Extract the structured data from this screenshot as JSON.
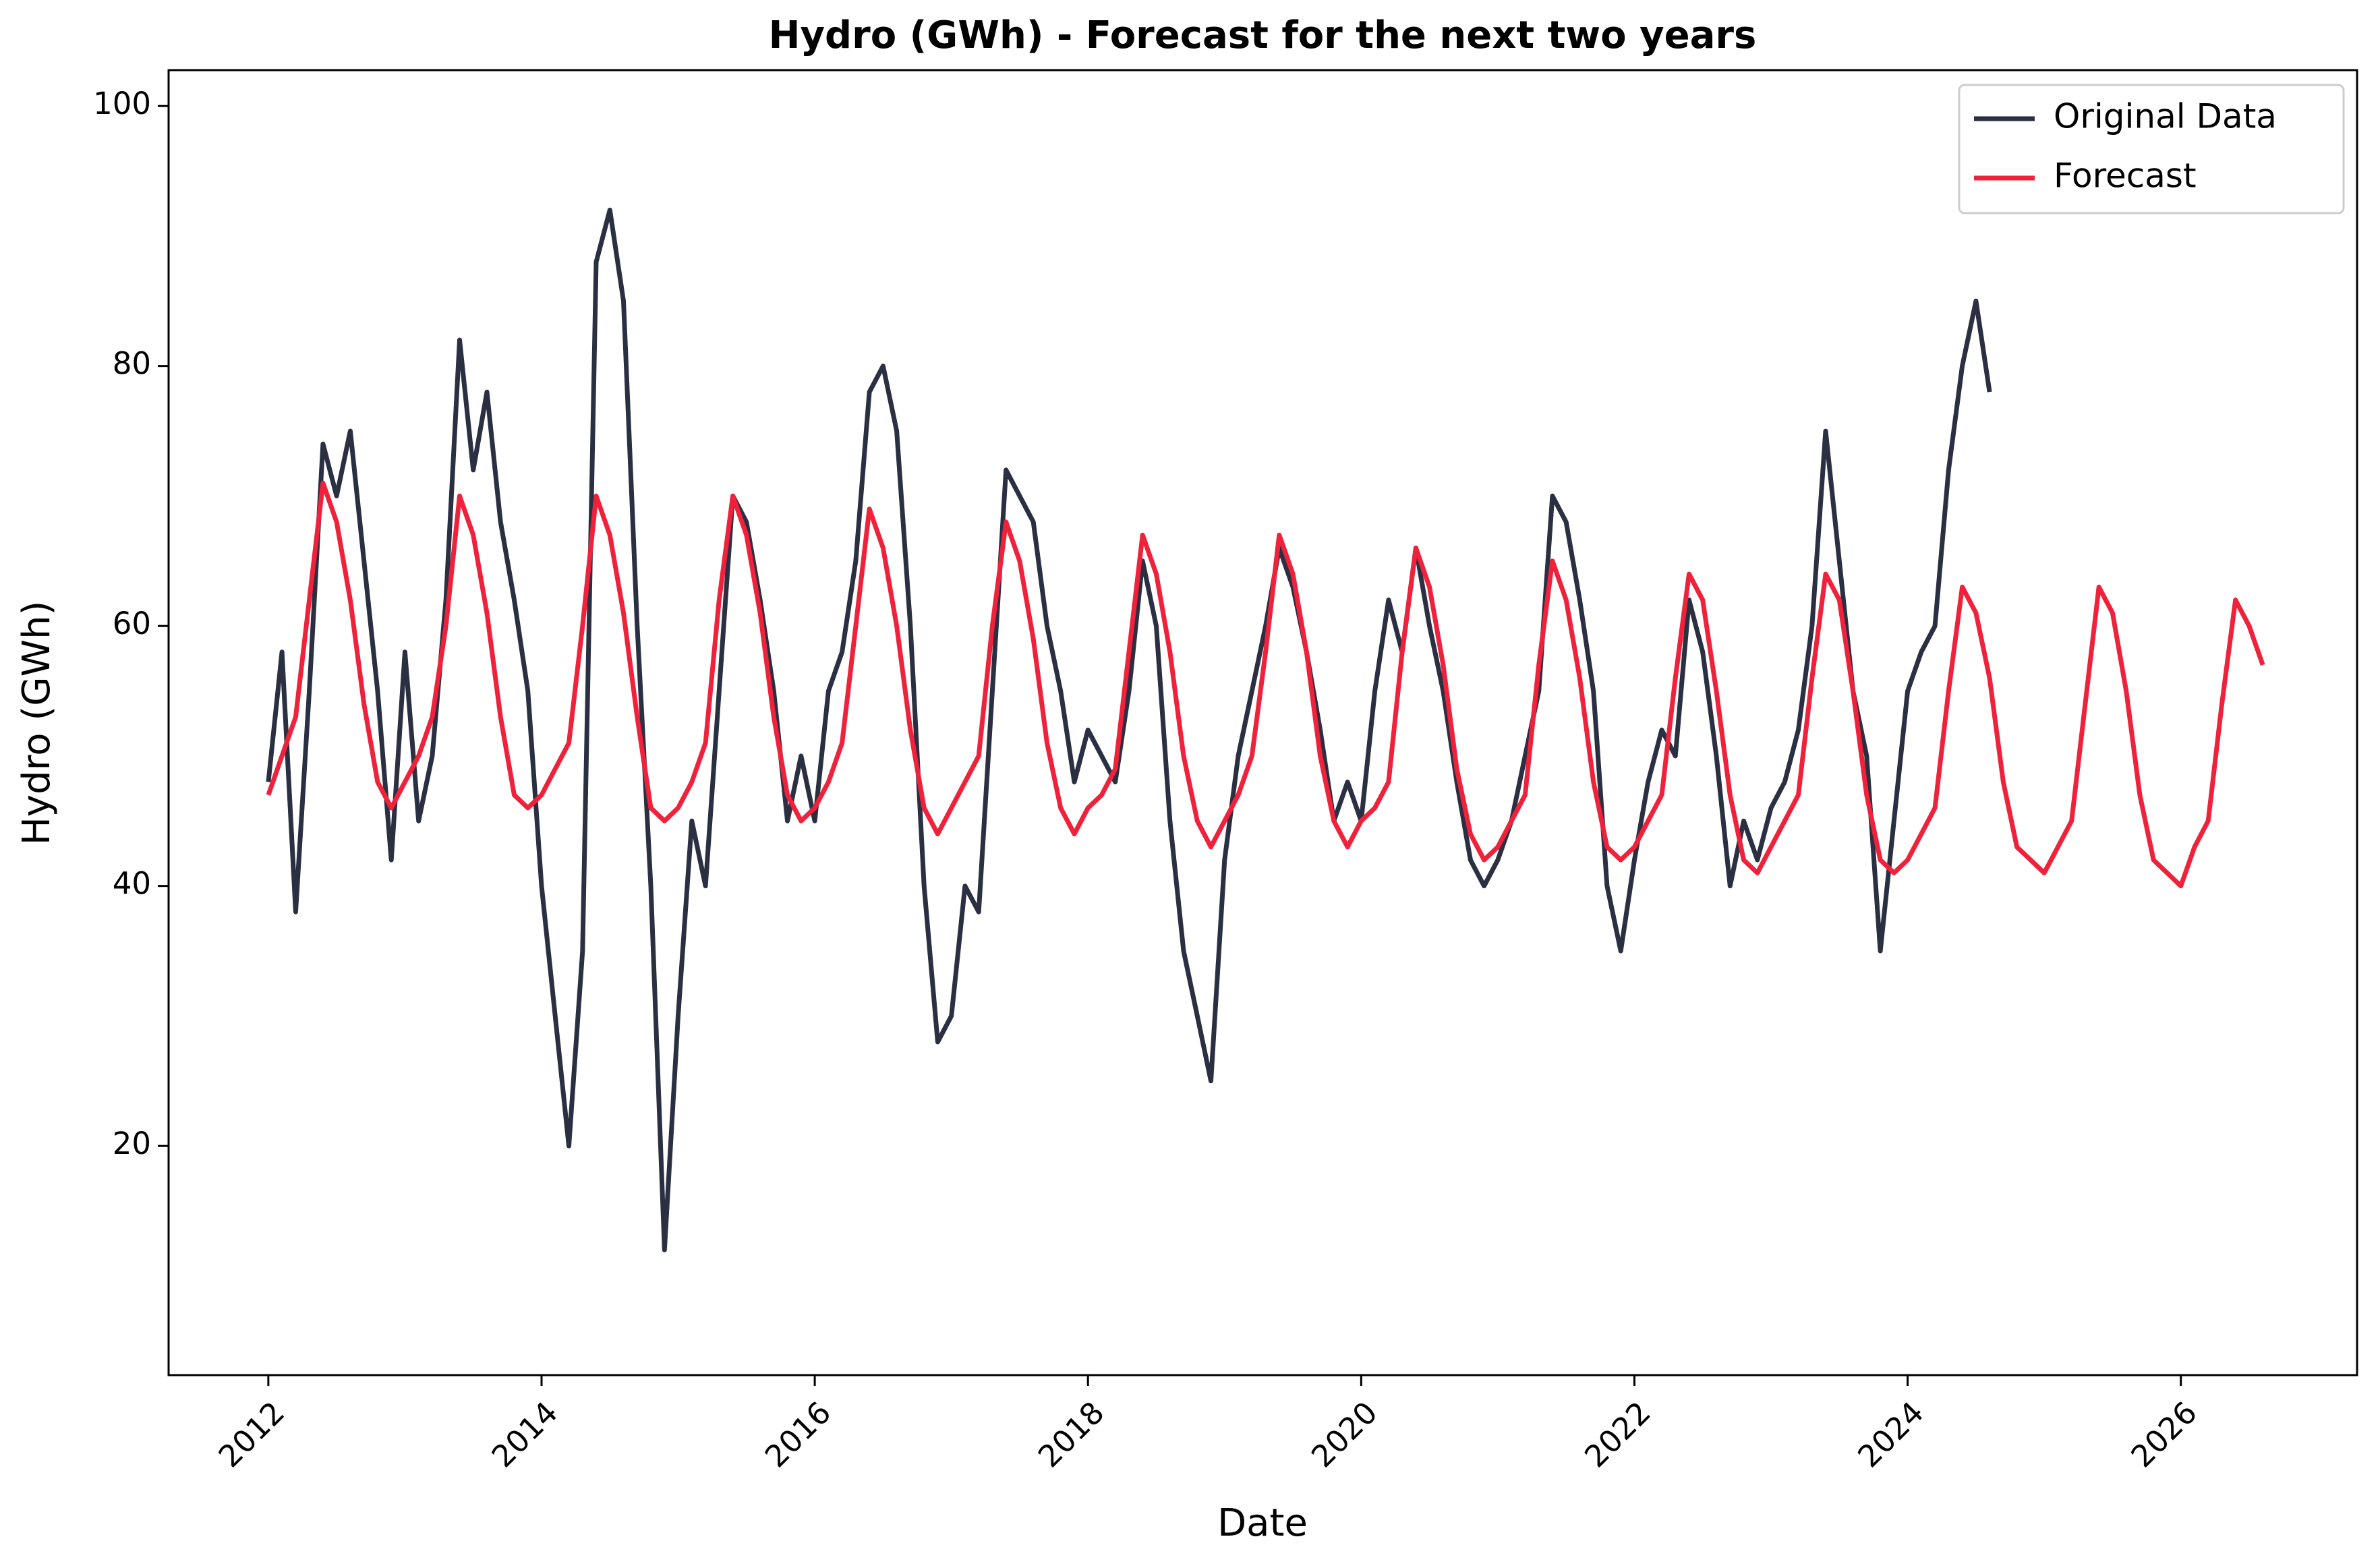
{
  "chart_data": {
    "type": "line",
    "title": "Hydro (GWh) - Forecast for the next two years",
    "x_label": "Date",
    "y_label": "Hydro (GWh)",
    "xlim": [
      2011.27,
      2027.29
    ],
    "ylim": [
      2.37,
      102.76
    ],
    "xticks": [
      2012,
      2014,
      2016,
      2018,
      2020,
      2022,
      2024,
      2026
    ],
    "yticks": [
      20,
      40,
      60,
      80,
      100
    ],
    "grid": false,
    "legend": "upper right",
    "series": [
      {
        "name": "Original Data",
        "color": "#2b2f42",
        "x": [
          2012.0,
          2012.1,
          2012.2,
          2012.3,
          2012.4,
          2012.5,
          2012.6,
          2012.7,
          2012.8,
          2012.9,
          2013.0,
          2013.1,
          2013.2,
          2013.3,
          2013.4,
          2013.5,
          2013.6,
          2013.7,
          2013.8,
          2013.9,
          2014.0,
          2014.1,
          2014.2,
          2014.3,
          2014.4,
          2014.5,
          2014.6,
          2014.7,
          2014.8,
          2014.9,
          2015.0,
          2015.1,
          2015.2,
          2015.3,
          2015.4,
          2015.5,
          2015.6,
          2015.7,
          2015.8,
          2015.9,
          2016.0,
          2016.1,
          2016.2,
          2016.3,
          2016.4,
          2016.5,
          2016.6,
          2016.7,
          2016.8,
          2016.9,
          2017.0,
          2017.1,
          2017.2,
          2017.3,
          2017.4,
          2017.5,
          2017.6,
          2017.7,
          2017.8,
          2017.9,
          2018.0,
          2018.1,
          2018.2,
          2018.3,
          2018.4,
          2018.5,
          2018.6,
          2018.7,
          2018.8,
          2018.9,
          2019.0,
          2019.1,
          2019.2,
          2019.3,
          2019.4,
          2019.5,
          2019.6,
          2019.7,
          2019.8,
          2019.9,
          2020.0,
          2020.1,
          2020.2,
          2020.3,
          2020.4,
          2020.5,
          2020.6,
          2020.7,
          2020.8,
          2020.9,
          2021.0,
          2021.1,
          2021.2,
          2021.3,
          2021.4,
          2021.5,
          2021.6,
          2021.7,
          2021.8,
          2021.9,
          2022.0,
          2022.1,
          2022.2,
          2022.3,
          2022.4,
          2022.5,
          2022.6,
          2022.7,
          2022.8,
          2022.9,
          2023.0,
          2023.1,
          2023.2,
          2023.3,
          2023.4,
          2023.5,
          2023.6,
          2023.7,
          2023.8,
          2023.9,
          2024.0,
          2024.1,
          2024.2,
          2024.3,
          2024.4,
          2024.5,
          2024.6
        ],
        "values": [
          48,
          58,
          38,
          55,
          74,
          70,
          75,
          65,
          55,
          42,
          58,
          45,
          50,
          62,
          82,
          72,
          78,
          68,
          62,
          55,
          40,
          30,
          20,
          35,
          88,
          92,
          85,
          60,
          40,
          12,
          30,
          45,
          40,
          55,
          70,
          68,
          62,
          55,
          45,
          50,
          45,
          55,
          58,
          65,
          78,
          80,
          75,
          60,
          40,
          28,
          30,
          40,
          38,
          55,
          72,
          70,
          68,
          60,
          55,
          48,
          52,
          50,
          48,
          55,
          65,
          60,
          45,
          35,
          30,
          25,
          42,
          50,
          55,
          60,
          66,
          63,
          58,
          52,
          45,
          48,
          45,
          55,
          62,
          58,
          66,
          60,
          55,
          48,
          42,
          40,
          42,
          45,
          50,
          55,
          70,
          68,
          62,
          55,
          40,
          35,
          42,
          48,
          52,
          50,
          62,
          58,
          50,
          40,
          45,
          42,
          46,
          48,
          52,
          60,
          75,
          65,
          55,
          50,
          35,
          45,
          55,
          58,
          60,
          72,
          80,
          85,
          78
        ]
      },
      {
        "name": "Forecast",
        "color": "#f0213b",
        "x": [
          2012.0,
          2012.1,
          2012.2,
          2012.3,
          2012.4,
          2012.5,
          2012.6,
          2012.7,
          2012.8,
          2012.9,
          2013.0,
          2013.1,
          2013.2,
          2013.3,
          2013.4,
          2013.5,
          2013.6,
          2013.7,
          2013.8,
          2013.9,
          2014.0,
          2014.1,
          2014.2,
          2014.3,
          2014.4,
          2014.5,
          2014.6,
          2014.7,
          2014.8,
          2014.9,
          2015.0,
          2015.1,
          2015.2,
          2015.3,
          2015.4,
          2015.5,
          2015.6,
          2015.7,
          2015.8,
          2015.9,
          2016.0,
          2016.1,
          2016.2,
          2016.3,
          2016.4,
          2016.5,
          2016.6,
          2016.7,
          2016.8,
          2016.9,
          2017.0,
          2017.1,
          2017.2,
          2017.3,
          2017.4,
          2017.5,
          2017.6,
          2017.7,
          2017.8,
          2017.9,
          2018.0,
          2018.1,
          2018.2,
          2018.3,
          2018.4,
          2018.5,
          2018.6,
          2018.7,
          2018.8,
          2018.9,
          2019.0,
          2019.1,
          2019.2,
          2019.3,
          2019.4,
          2019.5,
          2019.6,
          2019.7,
          2019.8,
          2019.9,
          2020.0,
          2020.1,
          2020.2,
          2020.3,
          2020.4,
          2020.5,
          2020.6,
          2020.7,
          2020.8,
          2020.9,
          2021.0,
          2021.1,
          2021.2,
          2021.3,
          2021.4,
          2021.5,
          2021.6,
          2021.7,
          2021.8,
          2021.9,
          2022.0,
          2022.1,
          2022.2,
          2022.3,
          2022.4,
          2022.5,
          2022.6,
          2022.7,
          2022.8,
          2022.9,
          2023.0,
          2023.1,
          2023.2,
          2023.3,
          2023.4,
          2023.5,
          2023.6,
          2023.7,
          2023.8,
          2023.9,
          2024.0,
          2024.1,
          2024.2,
          2024.3,
          2024.4,
          2024.5,
          2024.6,
          2024.7,
          2024.8,
          2024.9,
          2025.0,
          2025.1,
          2025.2,
          2025.3,
          2025.4,
          2025.5,
          2025.6,
          2025.7,
          2025.8,
          2025.9,
          2026.0,
          2026.1,
          2026.2,
          2026.3,
          2026.4,
          2026.5,
          2026.6
        ],
        "values": [
          47,
          50,
          53,
          62,
          71,
          68,
          62,
          54,
          48,
          46,
          48,
          50,
          53,
          60,
          70,
          67,
          61,
          53,
          47,
          46,
          47,
          49,
          51,
          60,
          70,
          67,
          61,
          53,
          46,
          45,
          46,
          48,
          51,
          62,
          70,
          67,
          61,
          53,
          47,
          45,
          46,
          48,
          51,
          60,
          69,
          66,
          60,
          52,
          46,
          44,
          46,
          48,
          50,
          60,
          68,
          65,
          59,
          51,
          46,
          44,
          46,
          47,
          49,
          58,
          67,
          64,
          58,
          50,
          45,
          43,
          45,
          47,
          50,
          58,
          67,
          64,
          58,
          50,
          45,
          43,
          45,
          46,
          48,
          58,
          66,
          63,
          57,
          49,
          44,
          42,
          43,
          45,
          47,
          57,
          65,
          62,
          56,
          48,
          43,
          42,
          43,
          45,
          47,
          56,
          64,
          62,
          55,
          47,
          42,
          41,
          43,
          45,
          47,
          56,
          64,
          62,
          55,
          47,
          42,
          41,
          42,
          44,
          46,
          55,
          63,
          61,
          56,
          48,
          43,
          42,
          41,
          43,
          45,
          54,
          63,
          61,
          55,
          47,
          42,
          41,
          40,
          43,
          45,
          54,
          62,
          60,
          57
        ]
      }
    ]
  }
}
